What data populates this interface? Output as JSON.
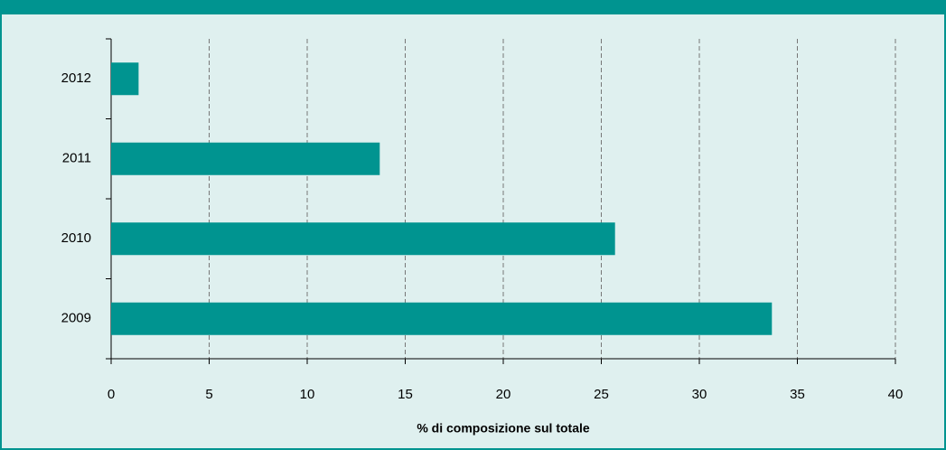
{
  "chart_data": {
    "type": "bar",
    "orientation": "horizontal",
    "xlabel": "% di composizione sul totale",
    "categories": [
      "2009",
      "2010",
      "2011",
      "2012"
    ],
    "values": [
      33.7,
      25.7,
      13.7,
      1.4
    ],
    "color": "#009490",
    "xlim": [
      0,
      40
    ],
    "xticks": [
      0,
      5,
      10,
      15,
      20,
      25,
      30,
      35,
      40
    ],
    "grid": true
  }
}
